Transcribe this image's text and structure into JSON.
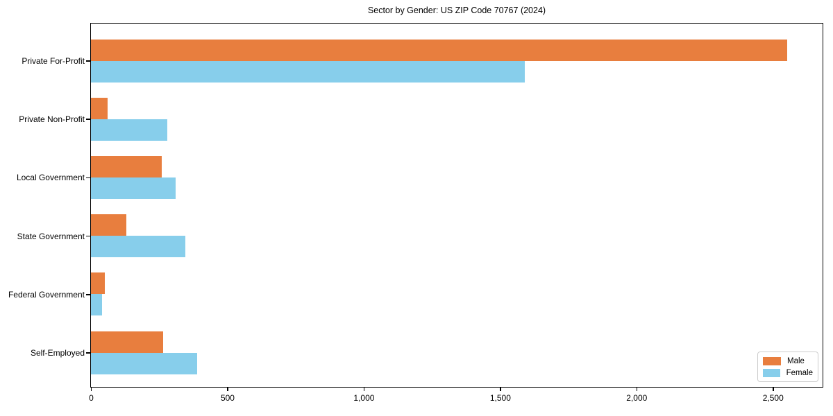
{
  "page": {
    "background": "#ffffff"
  },
  "chart_data": {
    "type": "bar",
    "orientation": "horizontal",
    "title": "Sector by Gender: US ZIP Code 70767 (2024)",
    "categories": [
      "Private For-Profit",
      "Private Non-Profit",
      "Local Government",
      "State Government",
      "Federal Government",
      "Self-Employed"
    ],
    "series": [
      {
        "name": "Male",
        "color": "#e87e3e",
        "values": [
          2550,
          60,
          260,
          130,
          50,
          265
        ]
      },
      {
        "name": "Female",
        "color": "#87ceeb",
        "values": [
          1590,
          280,
          310,
          345,
          40,
          390
        ]
      }
    ],
    "x_tick_values": [
      0,
      500,
      1000,
      1500,
      2000,
      2500
    ],
    "x_tick_labels": [
      "0",
      "500",
      "1,000",
      "1,500",
      "2,000",
      "2,500"
    ],
    "xlim": [
      0,
      2680
    ],
    "xlabel": "",
    "ylabel": "",
    "grid": false,
    "legend_position": "lower-right",
    "axis_color": "#000000"
  }
}
